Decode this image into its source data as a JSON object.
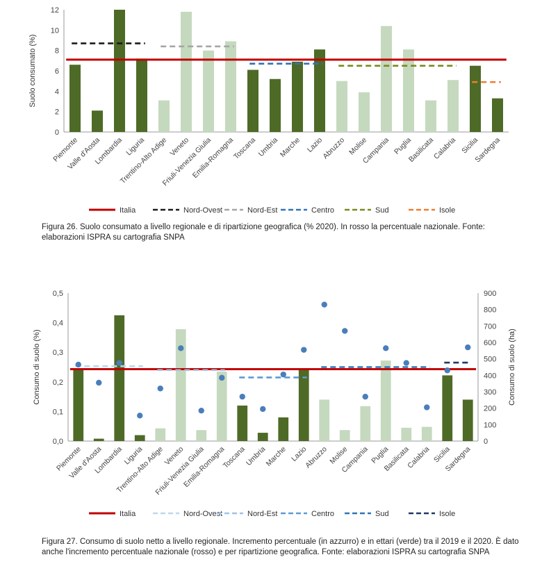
{
  "chart_data": [
    {
      "type": "bar",
      "ylabel": "Suolo consumato (%)",
      "ylim": [
        0,
        12
      ],
      "yticks": [
        "0",
        "2",
        "4",
        "6",
        "8",
        "10",
        "12"
      ],
      "grid": false,
      "legend_position": "bottom",
      "categories": [
        "Piemonte",
        "Valle d'Aosta",
        "Lombardia",
        "Liguria",
        "Trentino-Alto Adige",
        "Veneto",
        "Friuli-Venezia Giulia",
        "Emilia-Romagna",
        "Toscana",
        "Umbria",
        "Marche",
        "Lazio",
        "Abruzzo",
        "Molise",
        "Campania",
        "Puglia",
        "Basilicata",
        "Calabria",
        "Sicilia",
        "Sardegna"
      ],
      "values": [
        6.6,
        2.1,
        12.0,
        7.2,
        3.1,
        11.8,
        8.0,
        8.9,
        6.1,
        5.2,
        6.9,
        8.1,
        5.0,
        3.9,
        10.4,
        8.1,
        3.1,
        5.1,
        6.5,
        3.3
      ],
      "bar_colors": [
        "#4e6a27",
        "#4e6a27",
        "#4e6a27",
        "#4e6a27",
        "#c5d9bf",
        "#c5d9bf",
        "#c5d9bf",
        "#c5d9bf",
        "#4e6a27",
        "#4e6a27",
        "#4e6a27",
        "#4e6a27",
        "#c5d9bf",
        "#c5d9bf",
        "#c5d9bf",
        "#c5d9bf",
        "#c5d9bf",
        "#c5d9bf",
        "#4e6a27",
        "#4e6a27"
      ],
      "reference_lines": [
        {
          "name": "Italia",
          "value": 7.1,
          "from": 0,
          "to": 19,
          "color": "#c00000",
          "dash": false
        },
        {
          "name": "Nord-Ovest",
          "value": 8.7,
          "from": 0,
          "to": 3,
          "color": "#1a1a1a",
          "dash": true
        },
        {
          "name": "Nord-Est",
          "value": 8.4,
          "from": 4,
          "to": 7,
          "color": "#a6a6a6",
          "dash": true
        },
        {
          "name": "Centro",
          "value": 6.7,
          "from": 8,
          "to": 11,
          "color": "#2e75b6",
          "dash": true
        },
        {
          "name": "Sud",
          "value": 6.5,
          "from": 12,
          "to": 17,
          "color": "#7a8a1e",
          "dash": true
        },
        {
          "name": "Isole",
          "value": 4.9,
          "from": 18,
          "to": 19,
          "color": "#ed7d31",
          "dash": true
        }
      ],
      "caption": "Figura 26. Suolo consumato a livello regionale e di ripartizione geografica (% 2020). In rosso la percentuale nazionale. Fonte: elaborazioni ISPRA su cartografia SNPA"
    },
    {
      "type": "bar",
      "ylabel": "Consumo di suolo (%)",
      "ylim": [
        0,
        0.5
      ],
      "yticks": [
        "0,0",
        "0,1",
        "0,2",
        "0,3",
        "0,4",
        "0,5"
      ],
      "y2label": "Consumo di suolo (ha)",
      "y2lim": [
        0,
        900
      ],
      "y2ticks": [
        "0",
        "100",
        "200",
        "300",
        "400",
        "500",
        "600",
        "700",
        "800",
        "900"
      ],
      "grid": false,
      "legend_position": "bottom",
      "categories": [
        "Piemonte",
        "Valle d'Aosta",
        "Lombardia",
        "Liguria",
        "Trentino-Alto Adige",
        "Veneto",
        "Friuli-Venezia Giulia",
        "Emilia-Romagna",
        "Toscana",
        "Umbria",
        "Marche",
        "Lazio",
        "Abruzzo",
        "Molise",
        "Campania",
        "Puglia",
        "Basilicata",
        "Calabria",
        "Sicilia",
        "Sardegna"
      ],
      "values": [
        0.245,
        0.008,
        0.425,
        0.02,
        0.043,
        0.378,
        0.037,
        0.235,
        0.12,
        0.028,
        0.08,
        0.245,
        0.14,
        0.037,
        0.118,
        0.272,
        0.045,
        0.048,
        0.222,
        0.14
      ],
      "bar_colors": [
        "#4e6a27",
        "#4e6a27",
        "#4e6a27",
        "#4e6a27",
        "#c5d9bf",
        "#c5d9bf",
        "#c5d9bf",
        "#c5d9bf",
        "#4e6a27",
        "#4e6a27",
        "#4e6a27",
        "#4e6a27",
        "#c5d9bf",
        "#c5d9bf",
        "#c5d9bf",
        "#c5d9bf",
        "#c5d9bf",
        "#c5d9bf",
        "#4e6a27",
        "#4e6a27"
      ],
      "points_ha": [
        465,
        355,
        475,
        155,
        320,
        565,
        185,
        385,
        270,
        195,
        405,
        555,
        830,
        670,
        270,
        565,
        475,
        205,
        430,
        570
      ],
      "point_color": "#4a7ebb",
      "reference_lines": [
        {
          "name": "Italia",
          "value": 0.243,
          "from": 0,
          "to": 19,
          "color": "#c00000",
          "dash": false
        },
        {
          "name": "Nord-Ovest",
          "value": 0.253,
          "from": 0,
          "to": 3,
          "color": "#bdd7ee",
          "dash": true
        },
        {
          "name": "Nord-Est",
          "value": 0.24,
          "from": 4,
          "to": 7,
          "color": "#9dc3e6",
          "dash": true
        },
        {
          "name": "Centro",
          "value": 0.215,
          "from": 8,
          "to": 11,
          "color": "#5b9bd5",
          "dash": true
        },
        {
          "name": "Sud",
          "value": 0.25,
          "from": 12,
          "to": 17,
          "color": "#2e75b6",
          "dash": true
        },
        {
          "name": "Isole",
          "value": 0.265,
          "from": 18,
          "to": 19,
          "color": "#1f3864",
          "dash": true
        }
      ],
      "caption": "Figura 27. Consumo di suolo netto a livello regionale. Incremento percentuale (in azzurro) e in ettari (verde) tra il 2019 e il 2020. È dato anche l'incremento percentuale nazionale (rosso) e per ripartizione geografica. Fonte: elaborazioni ISPRA su cartografia SNPA"
    }
  ]
}
